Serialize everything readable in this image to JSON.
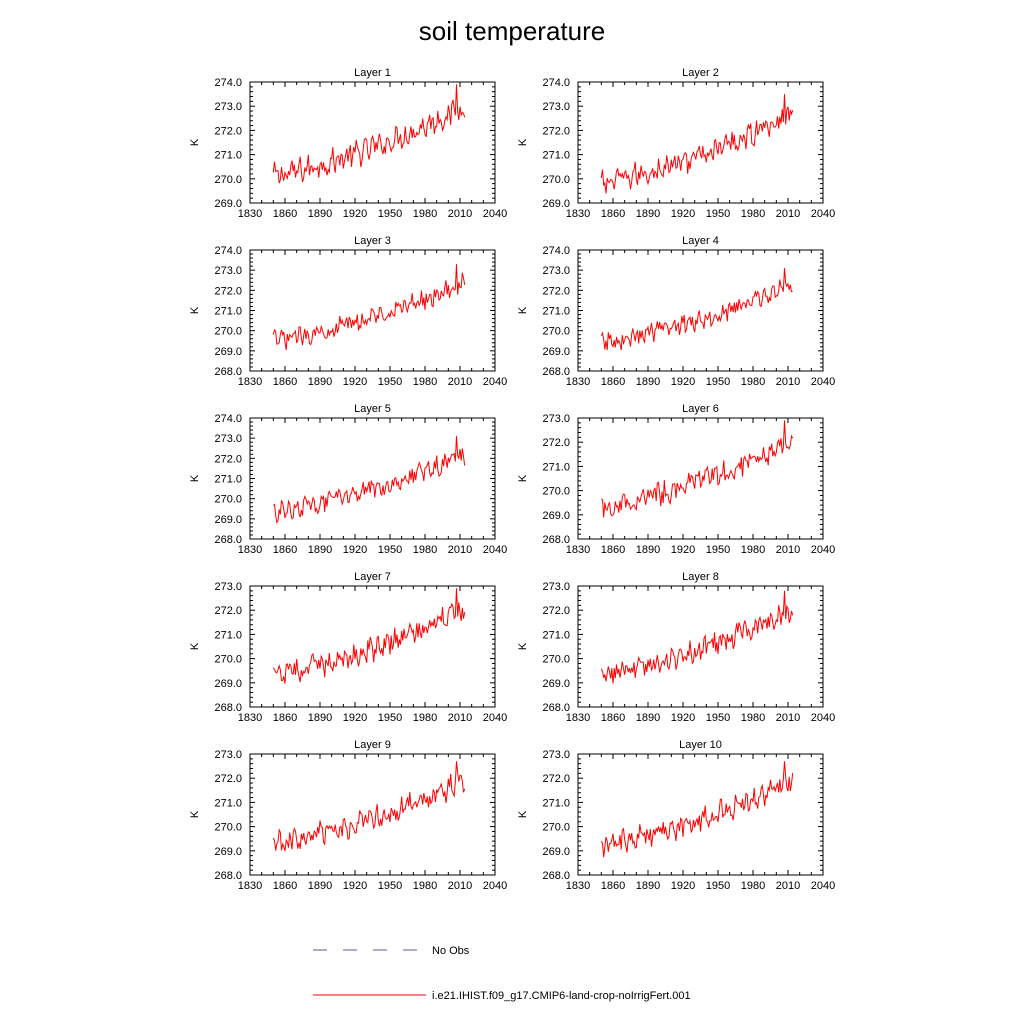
{
  "title": "soil temperature",
  "x_ticks": [
    1830,
    1860,
    1890,
    1920,
    1950,
    1980,
    2010,
    2040
  ],
  "ylabel": "K",
  "legend": {
    "obs_label": "No Obs",
    "model_label": "i.e21.IHIST.f09_g17.CMIP6-land-crop-noIrrigFert.001",
    "obs_color": "#5a5aa6",
    "model_color": "#ff0000"
  },
  "chart_data": [
    {
      "type": "line",
      "title": "Layer 1",
      "ylabel": "K",
      "xlim": [
        1830,
        2040
      ],
      "ylim": [
        269.0,
        274.0
      ],
      "y_ticks": [
        "269.0",
        "270.0",
        "271.0",
        "272.0",
        "273.0",
        "274.0"
      ],
      "series": [
        {
          "x_start": 1850,
          "x_end": 2014,
          "base_start": 270.1,
          "base_end": 273.0,
          "amp": 0.45,
          "phase": 0.3,
          "max": 273.9,
          "max_year": 2007
        }
      ]
    },
    {
      "type": "line",
      "title": "Layer 2",
      "ylabel": "K",
      "xlim": [
        1830,
        2040
      ],
      "ylim": [
        269.0,
        274.0
      ],
      "y_ticks": [
        "269.0",
        "270.0",
        "271.0",
        "272.0",
        "273.0",
        "274.0"
      ],
      "series": [
        {
          "x_start": 1850,
          "x_end": 2014,
          "base_start": 269.8,
          "base_end": 272.7,
          "amp": 0.42,
          "phase": 0.7,
          "max": 273.5,
          "max_year": 2007
        }
      ]
    },
    {
      "type": "line",
      "title": "Layer 3",
      "ylabel": "K",
      "xlim": [
        1830,
        2040
      ],
      "ylim": [
        268.0,
        274.0
      ],
      "y_ticks": [
        "268.0",
        "269.0",
        "270.0",
        "271.0",
        "272.0",
        "273.0",
        "274.0"
      ],
      "series": [
        {
          "x_start": 1850,
          "x_end": 2014,
          "base_start": 269.5,
          "base_end": 272.4,
          "amp": 0.4,
          "phase": 1.1,
          "max": 273.3,
          "max_year": 2007
        }
      ]
    },
    {
      "type": "line",
      "title": "Layer 4",
      "ylabel": "K",
      "xlim": [
        1830,
        2040
      ],
      "ylim": [
        268.0,
        274.0
      ],
      "y_ticks": [
        "268.0",
        "269.0",
        "270.0",
        "271.0",
        "272.0",
        "273.0",
        "274.0"
      ],
      "series": [
        {
          "x_start": 1850,
          "x_end": 2014,
          "base_start": 269.4,
          "base_end": 272.3,
          "amp": 0.4,
          "phase": 1.5,
          "max": 273.1,
          "max_year": 2007
        }
      ]
    },
    {
      "type": "line",
      "title": "Layer 5",
      "ylabel": "K",
      "xlim": [
        1830,
        2040
      ],
      "ylim": [
        268.0,
        274.0
      ],
      "y_ticks": [
        "268.0",
        "269.0",
        "270.0",
        "271.0",
        "272.0",
        "273.0",
        "274.0"
      ],
      "series": [
        {
          "x_start": 1850,
          "x_end": 2014,
          "base_start": 269.3,
          "base_end": 272.2,
          "amp": 0.4,
          "phase": 1.9,
          "max": 273.1,
          "max_year": 2007
        }
      ]
    },
    {
      "type": "line",
      "title": "Layer 6",
      "ylabel": "K",
      "xlim": [
        1830,
        2040
      ],
      "ylim": [
        268.0,
        273.0
      ],
      "y_ticks": [
        "268.0",
        "269.0",
        "270.0",
        "271.0",
        "272.0",
        "273.0"
      ],
      "series": [
        {
          "x_start": 1850,
          "x_end": 2014,
          "base_start": 269.3,
          "base_end": 272.1,
          "amp": 0.4,
          "phase": 2.3,
          "max": 272.9,
          "max_year": 2007
        }
      ]
    },
    {
      "type": "line",
      "title": "Layer 7",
      "ylabel": "K",
      "xlim": [
        1830,
        2040
      ],
      "ylim": [
        268.0,
        273.0
      ],
      "y_ticks": [
        "268.0",
        "269.0",
        "270.0",
        "271.0",
        "272.0",
        "273.0"
      ],
      "series": [
        {
          "x_start": 1850,
          "x_end": 2014,
          "base_start": 269.3,
          "base_end": 272.0,
          "amp": 0.4,
          "phase": 2.7,
          "max": 272.9,
          "max_year": 2007
        }
      ]
    },
    {
      "type": "line",
      "title": "Layer 8",
      "ylabel": "K",
      "xlim": [
        1830,
        2040
      ],
      "ylim": [
        268.0,
        273.0
      ],
      "y_ticks": [
        "268.0",
        "269.0",
        "270.0",
        "271.0",
        "272.0",
        "273.0"
      ],
      "series": [
        {
          "x_start": 1850,
          "x_end": 2014,
          "base_start": 269.3,
          "base_end": 272.0,
          "amp": 0.4,
          "phase": 3.1,
          "max": 272.8,
          "max_year": 2007
        }
      ]
    },
    {
      "type": "line",
      "title": "Layer 9",
      "ylabel": "K",
      "xlim": [
        1830,
        2040
      ],
      "ylim": [
        268.0,
        273.0
      ],
      "y_ticks": [
        "268.0",
        "269.0",
        "270.0",
        "271.0",
        "272.0",
        "273.0"
      ],
      "series": [
        {
          "x_start": 1850,
          "x_end": 2014,
          "base_start": 269.3,
          "base_end": 271.9,
          "amp": 0.4,
          "phase": 3.5,
          "max": 272.7,
          "max_year": 2007
        }
      ]
    },
    {
      "type": "line",
      "title": "Layer 10",
      "ylabel": "K",
      "xlim": [
        1830,
        2040
      ],
      "ylim": [
        268.0,
        273.0
      ],
      "y_ticks": [
        "268.0",
        "269.0",
        "270.0",
        "271.0",
        "272.0",
        "273.0"
      ],
      "series": [
        {
          "x_start": 1850,
          "x_end": 2014,
          "base_start": 269.2,
          "base_end": 271.9,
          "amp": 0.4,
          "phase": 3.9,
          "max": 272.7,
          "max_year": 2007
        }
      ]
    }
  ]
}
